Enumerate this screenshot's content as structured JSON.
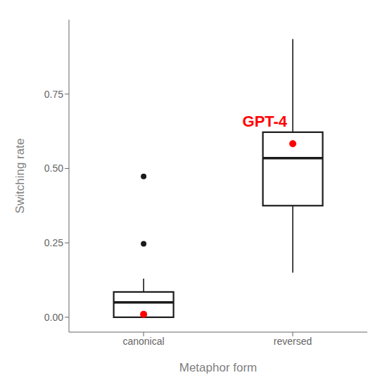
{
  "chart_data": {
    "type": "box",
    "xlabel": "Metaphor form",
    "ylabel": "Switching rate",
    "categories": [
      "canonical",
      "reversed"
    ],
    "q1": [
      0.0,
      0.375
    ],
    "median": [
      0.05,
      0.535
    ],
    "q3": [
      0.085,
      0.622
    ],
    "whisker_low": [
      0.0,
      0.15
    ],
    "whisker_high": [
      0.13,
      0.935
    ],
    "outliers": [
      [
        0.247,
        0.473
      ],
      []
    ],
    "color": "#1a1a1a",
    "gpt4_dot": {
      "values": [
        0.01,
        0.583
      ],
      "color": "#ff0000"
    },
    "annotations": [
      {
        "text": "GPT-4",
        "color": "#ff0000",
        "category": "reversed"
      }
    ],
    "ylim": [
      -0.05,
      1.0
    ],
    "yticks": [
      {
        "value": 0.0,
        "label": "0.00"
      },
      {
        "value": 0.25,
        "label": "0.25"
      },
      {
        "value": 0.5,
        "label": "0.50"
      },
      {
        "value": 0.75,
        "label": "0.75"
      }
    ],
    "grid": false
  }
}
